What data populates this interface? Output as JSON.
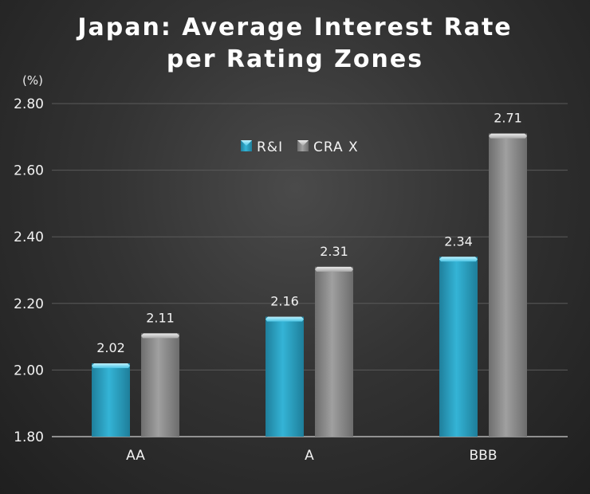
{
  "chart_data": {
    "type": "bar",
    "title_line1": "Japan: Average Interest Rate",
    "title_line2": "per Rating Zones",
    "ylabel": "(%)",
    "xlabel": "",
    "categories": [
      "AA",
      "A",
      "BBB"
    ],
    "series": [
      {
        "name": "R&I",
        "values": [
          2.02,
          2.16,
          2.34
        ],
        "color": "#2aa6c8"
      },
      {
        "name": "CRA X",
        "values": [
          2.11,
          2.31,
          2.71
        ],
        "color": "#8c8c8c"
      }
    ],
    "data_labels": [
      [
        "2.02",
        "2.16",
        "2.34"
      ],
      [
        "2.11",
        "2.31",
        "2.71"
      ]
    ],
    "ylim": [
      1.8,
      2.8
    ],
    "yticks": [
      "1.80",
      "2.00",
      "2.20",
      "2.40",
      "2.60",
      "2.80"
    ],
    "grid": true,
    "legend_position": "top-center"
  }
}
